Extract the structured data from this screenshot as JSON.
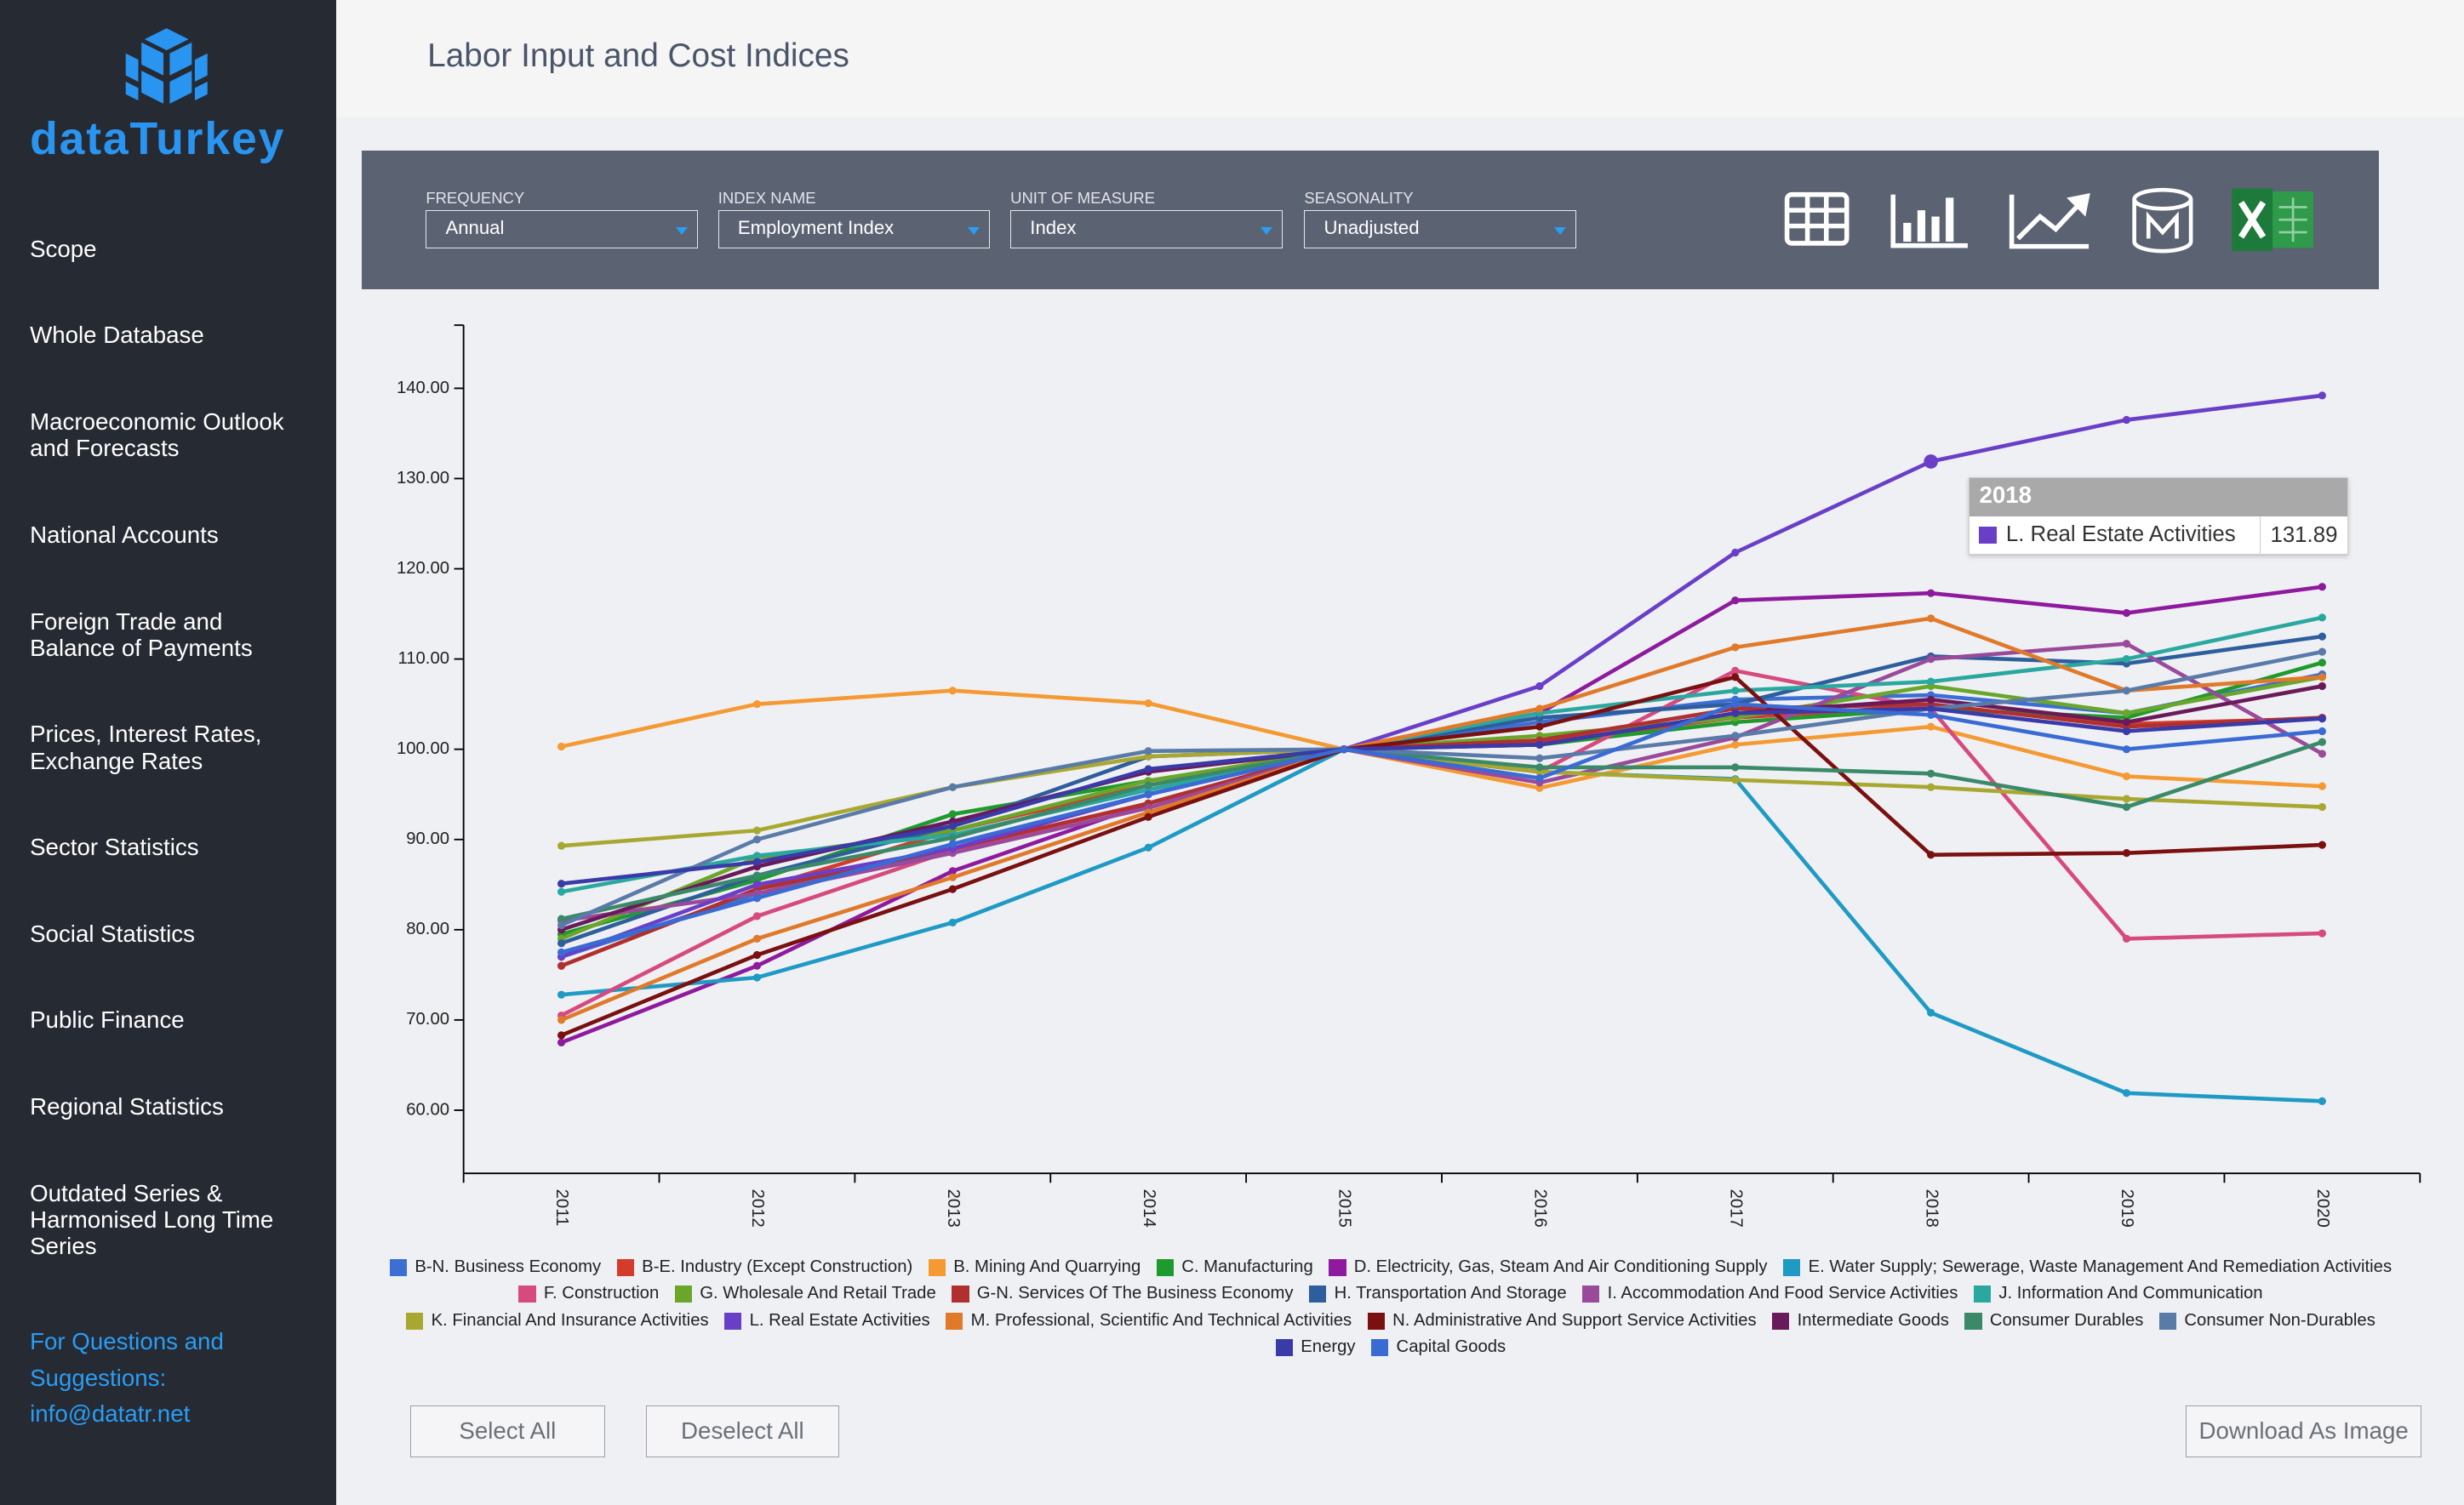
{
  "sidebar": {
    "logo": "dataTurkey",
    "menu": [
      "Scope",
      "Whole Database",
      "Macroeconomic Outlook and Forecasts",
      "National Accounts",
      "Foreign Trade and Balance of Payments",
      "Prices, Interest Rates, Exchange Rates",
      "Sector Statistics",
      "Social Statistics",
      "Public Finance",
      "Regional Statistics",
      "Outdated Series & Harmonised Long Time Series"
    ],
    "contact": "For Questions and Suggestions: info@datatr.net"
  },
  "header": {
    "title": "Labor Input and Cost Indices"
  },
  "filters": [
    {
      "label": "FREQUENCY",
      "value": "Annual"
    },
    {
      "label": "INDEX NAME",
      "value": "Employment Index"
    },
    {
      "label": "UNIT OF MEASURE",
      "value": "Index"
    },
    {
      "label": "SEASONALITY",
      "value": "Unadjusted"
    }
  ],
  "buttons": [
    "Select All",
    "Deselect All",
    "Download As Image"
  ],
  "chart_data": {
    "type": "line",
    "grid": false,
    "categories": [
      "2011",
      "2012",
      "2013",
      "2014",
      "2015",
      "2016",
      "2017",
      "2018",
      "2019",
      "2020"
    ],
    "ylim": [
      53,
      147
    ],
    "yticks": [
      {
        "value": 60,
        "label": "60.00"
      },
      {
        "value": 70,
        "label": "70.00"
      },
      {
        "value": 80,
        "label": "80.00"
      },
      {
        "value": 90,
        "label": "90.00"
      },
      {
        "value": 100,
        "label": "100.00"
      },
      {
        "value": 110,
        "label": "110.00"
      },
      {
        "value": 120,
        "label": "120.00"
      },
      {
        "value": 130,
        "label": "130.00"
      },
      {
        "value": 140,
        "label": "140.00"
      }
    ],
    "series": [
      {
        "name": "B-N. Business Economy",
        "color": "#3b6fd4",
        "values": [
          77,
          84,
          89,
          95,
          100,
          103,
          105.5,
          106,
          104,
          108.3
        ]
      },
      {
        "name": "B-E. Industry (Except Construction)",
        "color": "#d43b2a",
        "values": [
          76,
          84.5,
          91,
          96,
          100,
          100.8,
          103.5,
          104.8,
          102.8,
          103.4
        ]
      },
      {
        "name": "B. Mining And Quarrying",
        "color": "#f59a32",
        "values": [
          100.3,
          105,
          106.5,
          105.1,
          100,
          95.7,
          100.5,
          102.5,
          97,
          95.9
        ]
      },
      {
        "name": "C. Manufacturing",
        "color": "#1f9a2e",
        "values": [
          79.5,
          85.5,
          92.8,
          96.5,
          100,
          100.5,
          103,
          104.5,
          103.5,
          109.6
        ]
      },
      {
        "name": "D. Electricity, Gas, Steam And Air Conditioning Supply",
        "color": "#8e1a9e",
        "values": [
          67.5,
          76,
          86.5,
          94,
          100,
          104,
          116.5,
          117.3,
          115.1,
          118
        ]
      },
      {
        "name": "E. Water Supply; Sewerage, Waste Management And Remediation Activities",
        "color": "#1f9ac4",
        "values": [
          72.8,
          74.7,
          80.8,
          89.1,
          100,
          97.5,
          96.7,
          70.8,
          61.9,
          61
        ]
      },
      {
        "name": "F. Construction",
        "color": "#d64a7e",
        "values": [
          70.5,
          81.5,
          88.8,
          94,
          100,
          97.5,
          108.7,
          104.5,
          79,
          79.6
        ]
      },
      {
        "name": "G. Wholesale And Retail Trade",
        "color": "#6aa62a",
        "values": [
          79,
          88,
          91,
          96.5,
          100,
          101.5,
          103.5,
          107,
          104,
          108
        ]
      },
      {
        "name": "G-N. Services Of The Business Economy",
        "color": "#b03030",
        "values": [
          76,
          84.5,
          89,
          94,
          100,
          101,
          104.5,
          105,
          102.5,
          103.5
        ]
      },
      {
        "name": "H. Transportation And Storage",
        "color": "#2e5e9c",
        "values": [
          78.5,
          86,
          91.5,
          99.2,
          100,
          103.5,
          105,
          110.3,
          109.5,
          112.5
        ]
      },
      {
        "name": "I. Accommodation And Food Service Activities",
        "color": "#9a4a9a",
        "values": [
          81,
          84,
          88.5,
          93.5,
          100,
          96.3,
          101.3,
          110,
          111.7,
          99.5
        ]
      },
      {
        "name": "J. Information And Communication",
        "color": "#2aa8a0",
        "values": [
          84.2,
          88.2,
          90.5,
          95.5,
          100,
          104,
          106.5,
          107.5,
          110,
          114.6
        ]
      },
      {
        "name": "K. Financial And Insurance Activities",
        "color": "#a8a830",
        "values": [
          89.3,
          91,
          95.8,
          99.2,
          100,
          97.5,
          96.6,
          95.8,
          94.5,
          93.6
        ]
      },
      {
        "name": "L. Real Estate Activities",
        "color": "#6a3fc8",
        "values": [
          77,
          85,
          89,
          95,
          100,
          107,
          121.8,
          131.89,
          136.5,
          139.2
        ]
      },
      {
        "name": "M. Professional, Scientific And Technical Activities",
        "color": "#e07a2a",
        "values": [
          70,
          79,
          85.8,
          93,
          100,
          104.5,
          111.3,
          114.5,
          106.5,
          108
        ]
      },
      {
        "name": "N. Administrative And Support Service Activities",
        "color": "#7a1010",
        "values": [
          68.3,
          77.2,
          84.5,
          92.5,
          100,
          102.5,
          108,
          88.3,
          88.5,
          89.4
        ]
      },
      {
        "name": "Intermediate Goods",
        "color": "#6a1a5a",
        "values": [
          80,
          87,
          92,
          97.5,
          100,
          100.5,
          104,
          105.5,
          103,
          107
        ]
      },
      {
        "name": "Consumer Durables",
        "color": "#3a8a6a",
        "values": [
          81.2,
          86,
          90.2,
          96,
          100,
          98,
          98,
          97.3,
          93.6,
          100.8
        ]
      },
      {
        "name": "Consumer Non-Durables",
        "color": "#5a7aa8",
        "values": [
          80.5,
          90,
          95.8,
          99.8,
          100,
          99,
          101.5,
          104.5,
          106.5,
          110.8
        ]
      },
      {
        "name": "Energy",
        "color": "#3a3aa8",
        "values": [
          85.1,
          87.5,
          91.5,
          97.8,
          100,
          100.5,
          104,
          104.5,
          102,
          103.4
        ]
      },
      {
        "name": "Capital Goods",
        "color": "#3a6ad4",
        "values": [
          77.5,
          83.5,
          89.5,
          95,
          100,
          96.8,
          105,
          103.8,
          100,
          102
        ]
      }
    ]
  }
}
